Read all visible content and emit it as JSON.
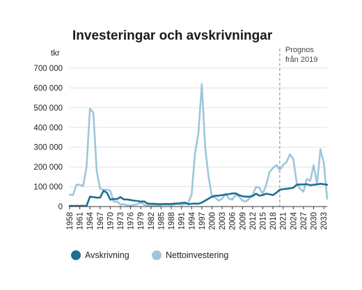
{
  "chart_data": {
    "type": "line",
    "title": "Investeringar och avskrivningar",
    "unit_label": "tkr",
    "annotation": {
      "line1": "Prognos",
      "line2": "från 2019",
      "x": 2020
    },
    "ylim": [
      0,
      700000
    ],
    "yticks": [
      0,
      100000,
      200000,
      300000,
      400000,
      500000,
      600000,
      700000
    ],
    "ytick_labels": [
      "0",
      "100 000",
      "200 000",
      "300 000",
      "400 000",
      "500 000",
      "600 000",
      "700 000"
    ],
    "xlim": [
      1958,
      2034
    ],
    "xticks": [
      1958,
      1961,
      1964,
      1967,
      1970,
      1973,
      1976,
      1979,
      1982,
      1985,
      1988,
      1991,
      1994,
      1997,
      2000,
      2003,
      2006,
      2009,
      2012,
      2015,
      2018,
      2021,
      2024,
      2027,
      2030,
      2033
    ],
    "grid": true,
    "legend_position": "bottom",
    "series": [
      {
        "name": "Avskrivning",
        "color": "#1e6e94",
        "x": [
          1958,
          1959,
          1960,
          1961,
          1962,
          1963,
          1964,
          1965,
          1966,
          1967,
          1968,
          1969,
          1970,
          1971,
          1972,
          1973,
          1974,
          1975,
          1976,
          1977,
          1978,
          1979,
          1980,
          1981,
          1982,
          1983,
          1984,
          1985,
          1986,
          1987,
          1988,
          1989,
          1990,
          1991,
          1992,
          1993,
          1994,
          1995,
          1996,
          1997,
          1998,
          1999,
          2000,
          2001,
          2002,
          2003,
          2004,
          2005,
          2006,
          2007,
          2008,
          2009,
          2010,
          2011,
          2012,
          2013,
          2014,
          2015,
          2016,
          2017,
          2018,
          2019,
          2020,
          2021,
          2022,
          2023,
          2024,
          2025,
          2026,
          2027,
          2028,
          2029,
          2030,
          2031,
          2032,
          2033,
          2034
        ],
        "y": [
          3000,
          3000,
          3000,
          3000,
          3000,
          3000,
          50000,
          48000,
          45000,
          45000,
          80000,
          70000,
          35000,
          38000,
          38000,
          48000,
          36000,
          36000,
          33000,
          30000,
          28000,
          25000,
          26000,
          15000,
          14000,
          14000,
          12000,
          12000,
          13000,
          13000,
          13000,
          15000,
          16000,
          18000,
          20000,
          12000,
          14000,
          15000,
          14000,
          20000,
          30000,
          40000,
          50000,
          55000,
          55000,
          58000,
          60000,
          63000,
          66000,
          67000,
          58000,
          52000,
          50000,
          50000,
          53000,
          65000,
          55000,
          58000,
          65000,
          62000,
          58000,
          70000,
          85000,
          88000,
          90000,
          92000,
          95000,
          110000,
          112000,
          112000,
          113000,
          108000,
          110000,
          112000,
          115000,
          113000,
          110000
        ]
      },
      {
        "name": "Nettoinvestering",
        "color": "#9ec6da",
        "x": [
          1958,
          1959,
          1960,
          1961,
          1962,
          1963,
          1964,
          1965,
          1966,
          1967,
          1968,
          1969,
          1970,
          1971,
          1972,
          1973,
          1974,
          1975,
          1976,
          1977,
          1978,
          1979,
          1980,
          1981,
          1982,
          1983,
          1984,
          1985,
          1986,
          1987,
          1988,
          1989,
          1990,
          1991,
          1992,
          1993,
          1994,
          1995,
          1996,
          1997,
          1998,
          1999,
          2000,
          2001,
          2002,
          2003,
          2004,
          2005,
          2006,
          2007,
          2008,
          2009,
          2010,
          2011,
          2012,
          2013,
          2014,
          2015,
          2016,
          2017,
          2018,
          2019,
          2020,
          2021,
          2022,
          2023,
          2024,
          2025,
          2026,
          2027,
          2028,
          2029,
          2030,
          2031,
          2032,
          2033,
          2034
        ],
        "y": [
          60000,
          58000,
          110000,
          110000,
          105000,
          200000,
          495000,
          475000,
          180000,
          90000,
          85000,
          85000,
          80000,
          25000,
          25000,
          10000,
          12000,
          6000,
          5000,
          8000,
          12000,
          20000,
          10000,
          5000,
          5000,
          7000,
          5000,
          8000,
          10000,
          10000,
          8000,
          10000,
          13000,
          10000,
          12000,
          20000,
          60000,
          270000,
          370000,
          620000,
          300000,
          150000,
          50000,
          45000,
          30000,
          40000,
          65000,
          40000,
          35000,
          60000,
          50000,
          30000,
          25000,
          40000,
          60000,
          100000,
          95000,
          65000,
          110000,
          175000,
          195000,
          210000,
          185000,
          210000,
          225000,
          265000,
          240000,
          120000,
          90000,
          75000,
          140000,
          130000,
          210000,
          115000,
          290000,
          220000,
          40000
        ]
      }
    ]
  }
}
